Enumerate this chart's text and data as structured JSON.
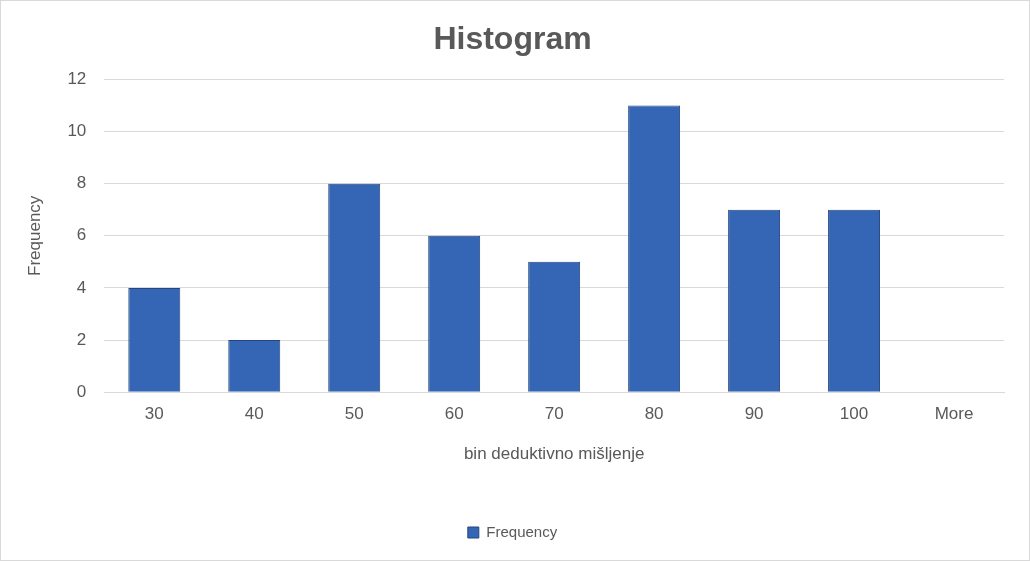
{
  "chart_data": {
    "type": "bar",
    "title": "Histogram",
    "xlabel": "bin deduktivno mišljenje",
    "ylabel": "Frequency",
    "categories": [
      "30",
      "40",
      "50",
      "60",
      "70",
      "80",
      "90",
      "100",
      "More"
    ],
    "series": [
      {
        "name": "Frequency",
        "color": "#3566b5",
        "values": [
          4,
          2,
          8,
          6,
          5,
          11,
          7,
          7,
          0
        ]
      }
    ],
    "ylim": [
      0,
      12
    ],
    "yticks": [
      0,
      2,
      4,
      6,
      8,
      10,
      12
    ],
    "grid": "y",
    "legend": "bottom"
  }
}
